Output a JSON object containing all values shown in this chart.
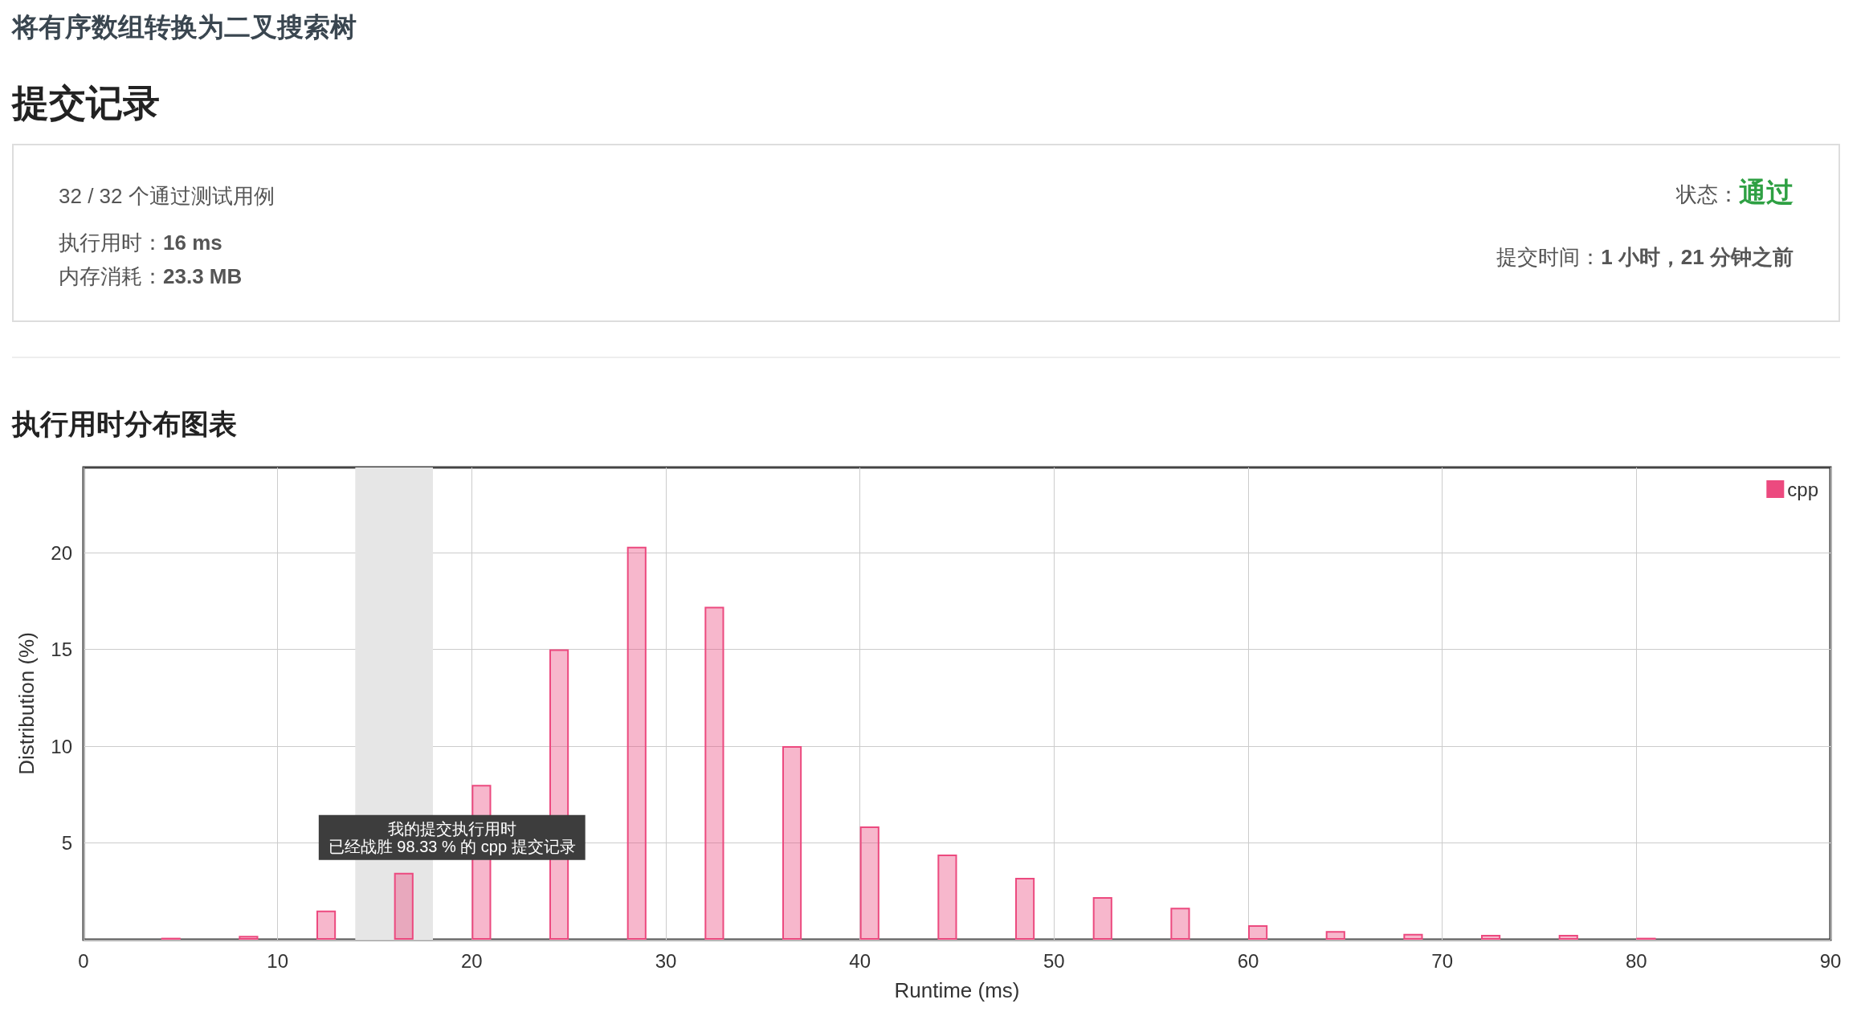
{
  "chart_data": {
    "type": "bar",
    "title": "执行用时分布图表",
    "xlabel": "Runtime (ms)",
    "ylabel": "Distribution (%)",
    "x": [
      4.5,
      8.5,
      12.5,
      16.5,
      20.5,
      24.5,
      28.5,
      32.5,
      36.5,
      40.5,
      44.5,
      48.5,
      52.5,
      56.5,
      60.5,
      64.5,
      68.5,
      72.5,
      76.5,
      80.5
    ],
    "series": [
      {
        "name": "cpp",
        "color": "#ec4a7f",
        "values": [
          0.1,
          0.2,
          1.5,
          3.45,
          8,
          15,
          20.3,
          17.2,
          10,
          5.85,
          4.4,
          3.2,
          2.2,
          1.65,
          0.75,
          0.45,
          0.3,
          0.25,
          0.25,
          0.1
        ]
      }
    ],
    "xlim": [
      0,
      90
    ],
    "xticks": [
      0,
      10,
      20,
      30,
      40,
      50,
      60,
      70,
      80,
      90
    ],
    "ylim": [
      0,
      24.4
    ],
    "yticks": [
      {
        "value": 0,
        "label": null
      },
      5,
      10,
      15,
      20
    ],
    "bands": [
      {
        "axis": "x",
        "from": 14,
        "to": 18,
        "color": "#e6e6e6"
      }
    ],
    "grid": true,
    "legend": "top right",
    "annotations": [
      "将有序数组转换为二叉搜索树",
      "提交记录",
      "32 / 32 个通过测试用例",
      "执行用时：16 ms",
      "内存消耗：23.3 MB",
      "状态：通过",
      "提交时间：1 小时，21 分钟之前",
      {
        "text": "我的提交执行用时",
        "x": 16.5,
        "y": 3.45
      },
      "已经战胜 98.33 % 的 cpp 提交记录"
    ]
  }
}
